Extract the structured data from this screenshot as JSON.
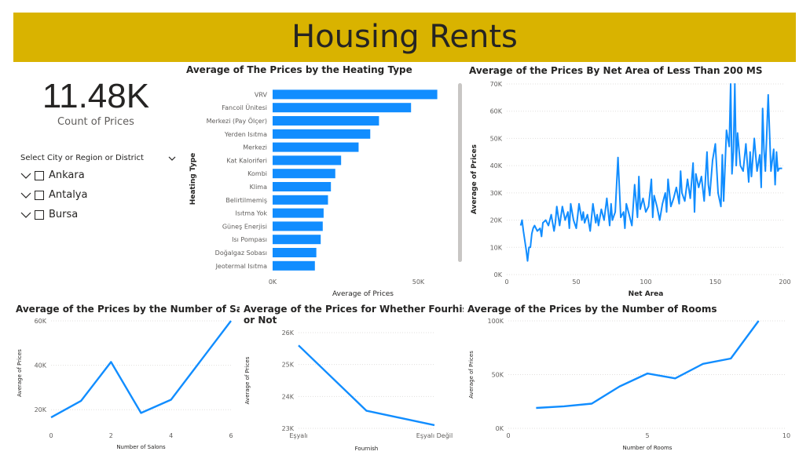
{
  "header": {
    "title": "Housing Rents"
  },
  "card": {
    "value": "11.48K",
    "label": "Count of Prices"
  },
  "slicer": {
    "title": "Select City or Region or District",
    "items": [
      {
        "label": "Ankara"
      },
      {
        "label": "Antalya"
      },
      {
        "label": "Bursa"
      }
    ]
  },
  "colors": {
    "accent": "#118dff",
    "banner": "#d9b300",
    "text": "#252423",
    "axis": "#605e5c"
  },
  "chart_data": [
    {
      "id": "heating",
      "type": "bar",
      "orientation": "horizontal",
      "title": "Average of The Prices by the Heating Type",
      "xlabel": "Average of Prices",
      "ylabel": "Heating Type",
      "categories": [
        "VRV",
        "Fancoil Ünitesi",
        "Merkezi (Pay Ölçer)",
        "Yerden Isıtma",
        "Merkezi",
        "Kat Kaloriferi",
        "Kombi",
        "Klima",
        "Belirtilmemiş",
        "Isıtma Yok",
        "Güneş Enerjisi",
        "Isı Pompası",
        "Doğalgaz Sobası",
        "Jeotermal Isıtma"
      ],
      "values": [
        56500,
        47500,
        36500,
        33500,
        29500,
        23500,
        21500,
        20000,
        19000,
        17500,
        17200,
        16500,
        15000,
        14500
      ],
      "xlim": [
        0,
        62000
      ],
      "xticks": [
        {
          "v": 0,
          "label": "0K"
        },
        {
          "v": 50000,
          "label": "50K"
        }
      ]
    },
    {
      "id": "netarea",
      "type": "line",
      "title": "Average of the Prices By Net Area of Less Than 200 MS",
      "xlabel": "Net Area",
      "ylabel": "Average of Prices",
      "xlim": [
        0,
        200
      ],
      "ylim": [
        0,
        70000
      ],
      "xticks": [
        {
          "v": 0,
          "label": "0"
        },
        {
          "v": 50,
          "label": "50"
        },
        {
          "v": 100,
          "label": "100"
        },
        {
          "v": 150,
          "label": "150"
        },
        {
          "v": 200,
          "label": "200"
        }
      ],
      "yticks": [
        {
          "v": 0,
          "label": "0K"
        },
        {
          "v": 10000,
          "label": "10K"
        },
        {
          "v": 20000,
          "label": "20K"
        },
        {
          "v": 30000,
          "label": "30K"
        },
        {
          "v": 40000,
          "label": "40K"
        },
        {
          "v": 50000,
          "label": "50K"
        },
        {
          "v": 60000,
          "label": "60K"
        },
        {
          "v": 70000,
          "label": "70K"
        }
      ],
      "x": [
        10,
        11,
        12,
        14,
        15,
        16,
        17,
        18,
        19,
        20,
        22,
        24,
        25,
        26,
        28,
        30,
        32,
        34,
        35,
        36,
        38,
        40,
        42,
        44,
        45,
        46,
        48,
        50,
        52,
        54,
        55,
        56,
        58,
        60,
        62,
        64,
        65,
        66,
        68,
        70,
        72,
        74,
        75,
        76,
        78,
        80,
        82,
        84,
        85,
        86,
        88,
        90,
        92,
        94,
        95,
        96,
        98,
        100,
        102,
        104,
        105,
        106,
        108,
        110,
        112,
        114,
        115,
        116,
        118,
        120,
        122,
        124,
        125,
        126,
        128,
        130,
        132,
        134,
        135,
        136,
        138,
        140,
        142,
        144,
        145,
        146,
        148,
        150,
        152,
        154,
        155,
        156,
        158,
        160,
        161,
        162,
        163,
        164,
        165,
        166,
        168,
        170,
        172,
        174,
        175,
        176,
        178,
        180,
        182,
        183,
        184,
        185,
        186,
        188,
        190,
        192,
        193,
        194,
        195,
        196,
        198
      ],
      "y": [
        18000,
        20000,
        16000,
        9000,
        5000,
        10000,
        10000,
        15000,
        17000,
        18000,
        16000,
        17000,
        14000,
        19000,
        20000,
        18000,
        22000,
        16000,
        19000,
        25000,
        18000,
        25000,
        20000,
        23000,
        17000,
        26000,
        20000,
        17000,
        26000,
        20000,
        23000,
        19000,
        22000,
        16000,
        26000,
        19000,
        22000,
        18000,
        24000,
        20000,
        28000,
        18000,
        26000,
        20000,
        23000,
        43000,
        21000,
        23000,
        17000,
        26000,
        22000,
        18000,
        33000,
        21000,
        36000,
        24000,
        28000,
        23000,
        25000,
        35000,
        21000,
        29000,
        25000,
        20000,
        26000,
        30000,
        23000,
        35000,
        25000,
        28000,
        32000,
        26000,
        38000,
        30000,
        27000,
        35000,
        28000,
        41000,
        23000,
        37000,
        32000,
        36000,
        27000,
        45000,
        33000,
        29000,
        42000,
        48000,
        30000,
        25000,
        44000,
        27000,
        53000,
        47000,
        70000,
        37000,
        45000,
        70000,
        40000,
        52000,
        40000,
        38000,
        48000,
        34000,
        45000,
        36000,
        50000,
        38000,
        44000,
        32000,
        61000,
        46000,
        38000,
        66000,
        38000,
        46000,
        33000,
        45000,
        38000,
        39000,
        39000
      ]
    },
    {
      "id": "salons",
      "type": "line",
      "title": "Average of the Prices by the Number of Salons",
      "xlabel": "Number of Salons",
      "ylabel": "Average of Prices",
      "xlim": [
        0,
        6
      ],
      "ylim": [
        13000,
        60000
      ],
      "xticks": [
        {
          "v": 0,
          "label": "0"
        },
        {
          "v": 2,
          "label": "2"
        },
        {
          "v": 4,
          "label": "4"
        },
        {
          "v": 6,
          "label": "6"
        }
      ],
      "yticks": [
        {
          "v": 20000,
          "label": "20K"
        },
        {
          "v": 40000,
          "label": "40K"
        },
        {
          "v": 60000,
          "label": "60K"
        }
      ],
      "x": [
        0,
        1,
        2,
        3,
        4,
        6
      ],
      "y": [
        16500,
        24000,
        41500,
        18500,
        24500,
        60000
      ]
    },
    {
      "id": "furnished",
      "type": "line",
      "title": "Average of the Prices for Whether Fourhished or Not",
      "xlabel": "Fournish",
      "ylabel": "Average of Prices",
      "categories": [
        "Eşyalı",
        "",
        "Eşyalı Değil"
      ],
      "ylim": [
        23000,
        26000
      ],
      "yticks": [
        {
          "v": 23000,
          "label": "23K"
        },
        {
          "v": 24000,
          "label": "24K"
        },
        {
          "v": 25000,
          "label": "25K"
        },
        {
          "v": 26000,
          "label": "26K"
        }
      ],
      "x": [
        0,
        1,
        2
      ],
      "y": [
        25600,
        23550,
        23100
      ]
    },
    {
      "id": "rooms",
      "type": "line",
      "title": "Average of the Prices by the Number of Rooms",
      "xlabel": "Number of Rooms",
      "ylabel": "Average of Prices",
      "xlim": [
        0,
        10
      ],
      "ylim": [
        0,
        100000
      ],
      "xticks": [
        {
          "v": 0,
          "label": "0"
        },
        {
          "v": 5,
          "label": "5"
        },
        {
          "v": 10,
          "label": "10"
        }
      ],
      "yticks": [
        {
          "v": 0,
          "label": "0K"
        },
        {
          "v": 50000,
          "label": "50K"
        },
        {
          "v": 100000,
          "label": "100K"
        }
      ],
      "x": [
        1,
        2,
        3,
        4,
        5,
        6,
        7,
        8,
        9
      ],
      "y": [
        19000,
        20500,
        23000,
        39000,
        51000,
        46500,
        60000,
        65000,
        100000
      ]
    }
  ]
}
